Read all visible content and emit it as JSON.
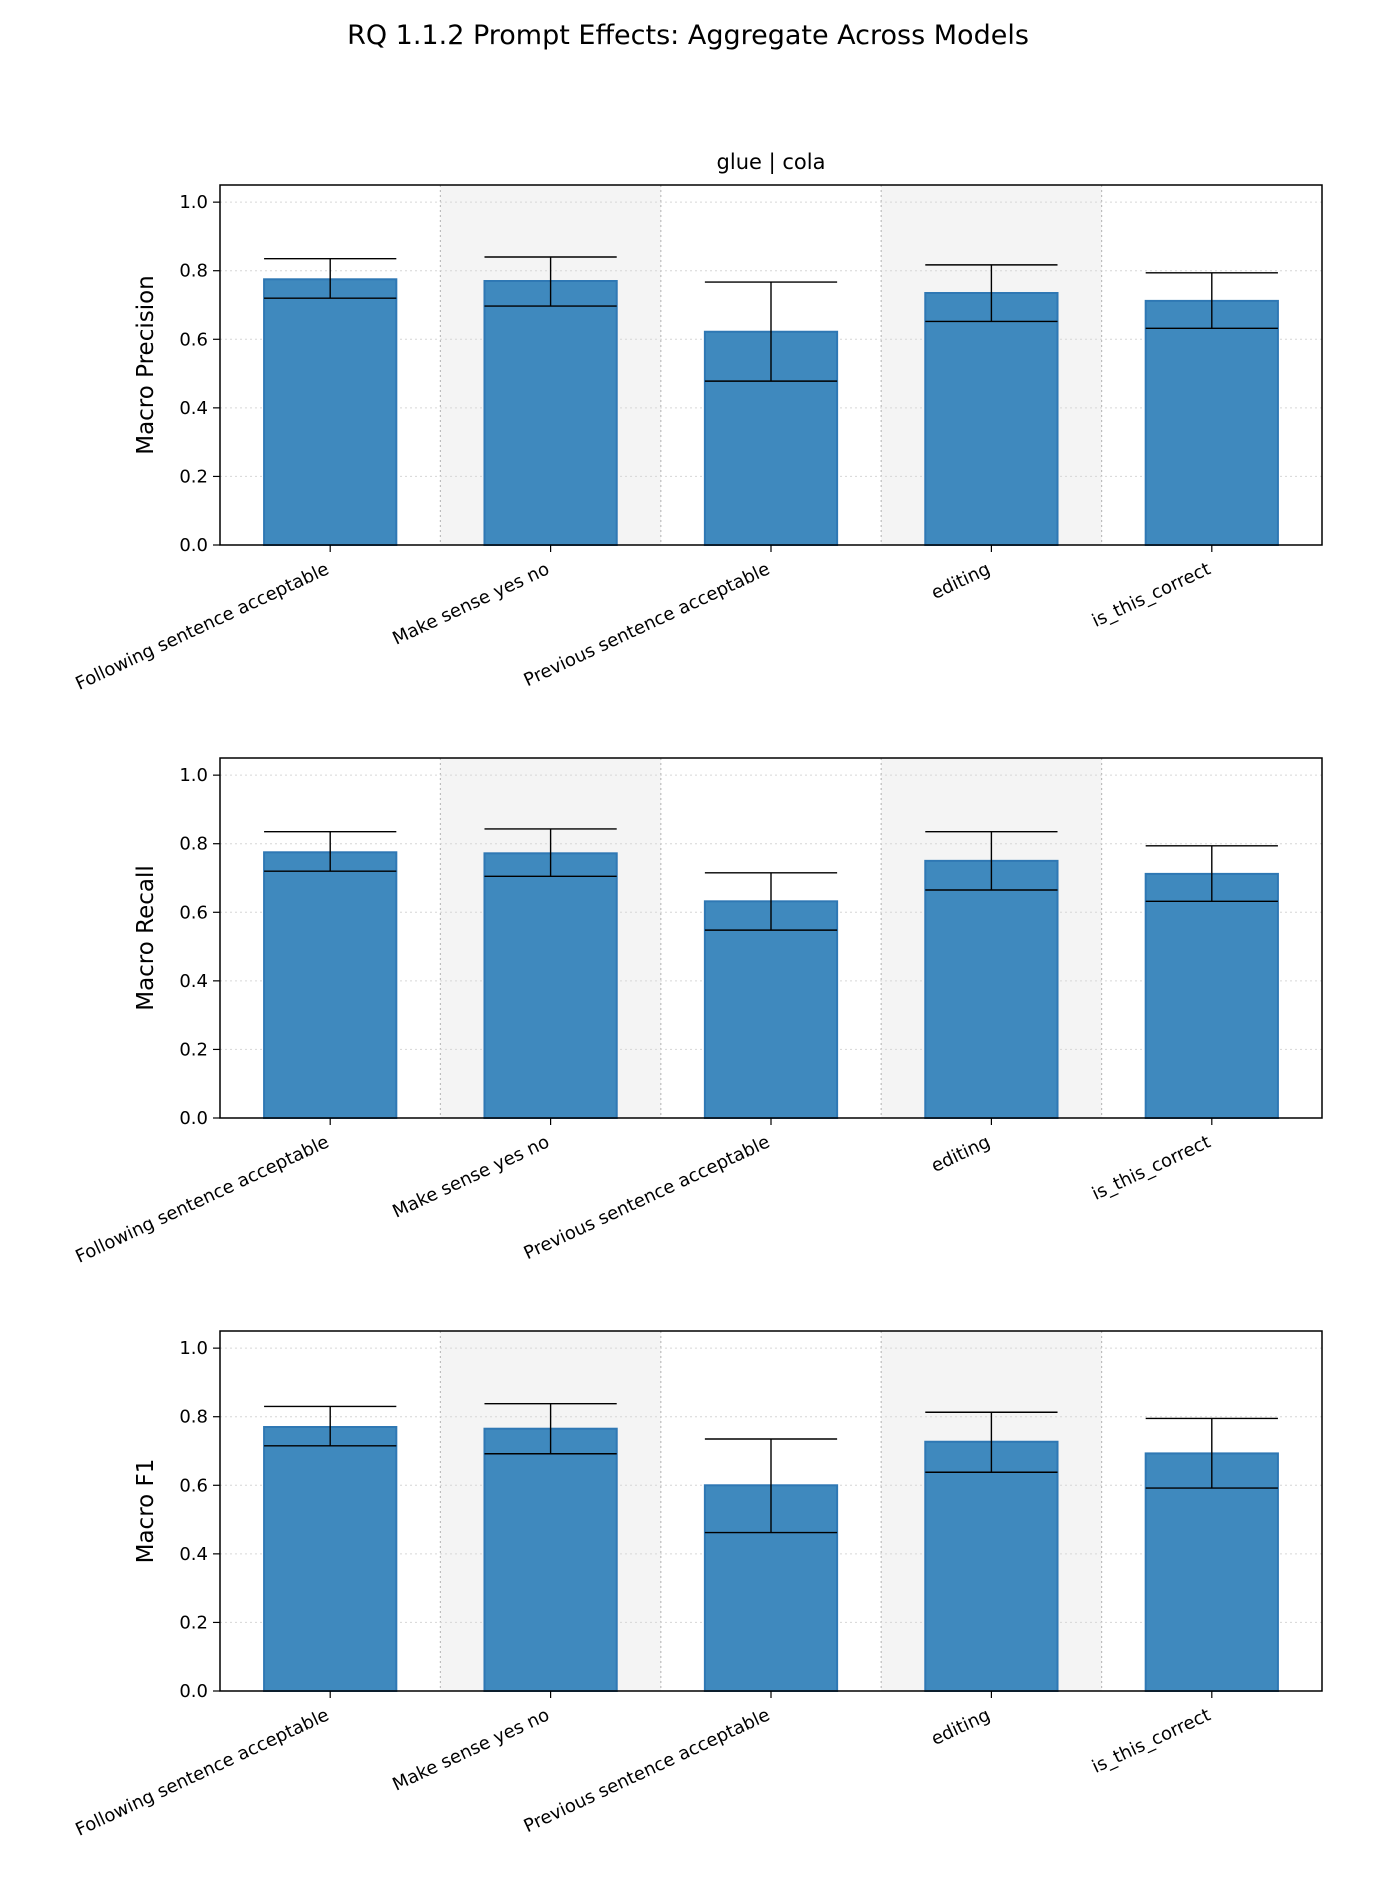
{
  "figure": {
    "title": "RQ 1.1.2 Prompt Effects: Aggregate Across Models",
    "subtitle": "glue | cola"
  },
  "colors": {
    "bar_fill": "#3f89be",
    "bar_edge": "#2f78b4",
    "band": "#f4f4f4",
    "grid": "#d6d6d6",
    "error_bar": "#000000"
  },
  "chart_data": [
    {
      "type": "bar",
      "title": "glue | cola",
      "ylabel": "Macro Precision",
      "xlabel": "",
      "categories": [
        "Following sentence acceptable",
        "Make sense yes no",
        "Previous sentence acceptable",
        "editing",
        "is_this_correct"
      ],
      "values": [
        0.775,
        0.77,
        0.622,
        0.735,
        0.712
      ],
      "error_low": [
        0.72,
        0.697,
        0.478,
        0.652,
        0.632
      ],
      "error_high": [
        0.835,
        0.84,
        0.767,
        0.817,
        0.794
      ],
      "ylim": [
        0,
        1.05
      ],
      "yticks": [
        "0.0",
        "0.2",
        "0.4",
        "0.6",
        "0.8",
        "1.0"
      ],
      "grid": true,
      "alternating_bands": true
    },
    {
      "type": "bar",
      "title": "",
      "ylabel": "Macro Recall",
      "xlabel": "",
      "categories": [
        "Following sentence acceptable",
        "Make sense yes no",
        "Previous sentence acceptable",
        "editing",
        "is_this_correct"
      ],
      "values": [
        0.775,
        0.772,
        0.632,
        0.75,
        0.712
      ],
      "error_low": [
        0.72,
        0.705,
        0.548,
        0.665,
        0.632
      ],
      "error_high": [
        0.835,
        0.843,
        0.715,
        0.835,
        0.794
      ],
      "ylim": [
        0,
        1.05
      ],
      "yticks": [
        "0.0",
        "0.2",
        "0.4",
        "0.6",
        "0.8",
        "1.0"
      ],
      "grid": true,
      "alternating_bands": true
    },
    {
      "type": "bar",
      "title": "",
      "ylabel": "Macro F1",
      "xlabel": "",
      "categories": [
        "Following sentence acceptable",
        "Make sense yes no",
        "Previous sentence acceptable",
        "editing",
        "is_this_correct"
      ],
      "values": [
        0.77,
        0.765,
        0.6,
        0.727,
        0.693
      ],
      "error_low": [
        0.715,
        0.692,
        0.462,
        0.638,
        0.592
      ],
      "error_high": [
        0.83,
        0.838,
        0.735,
        0.813,
        0.795
      ],
      "ylim": [
        0,
        1.05
      ],
      "yticks": [
        "0.0",
        "0.2",
        "0.4",
        "0.6",
        "0.8",
        "1.0"
      ],
      "grid": true,
      "alternating_bands": true
    }
  ]
}
